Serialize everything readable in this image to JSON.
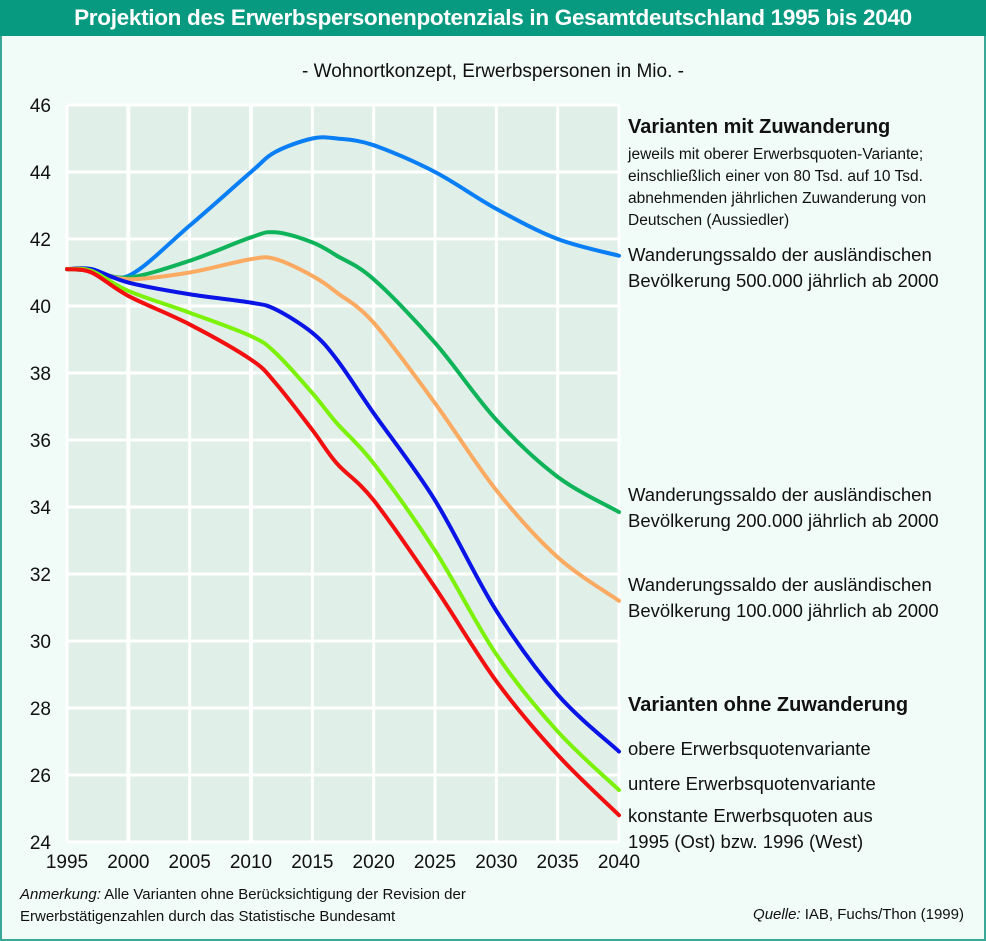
{
  "header": {
    "title": "Projektion des Erwerbspersonenpotenzials in Gesamtdeutschland 1995 bis 2040",
    "subtitle": "- Wohnortkonzept, Erwerbspersonen in Mio. -"
  },
  "legend": {
    "group_with": {
      "heading": "Varianten mit Zuwanderung",
      "desc_lines": [
        "jeweils mit oberer Erwerbsquoten-Variante;",
        "einschließlich einer von 80 Tsd. auf 10 Tsd.",
        "abnehmenden jährlichen Zuwanderung von",
        "Deutschen (Aussiedler)"
      ],
      "item_500k": [
        "Wanderungssaldo der ausländischen",
        "Bevölkerung 500.000 jährlich ab 2000"
      ],
      "item_200k": [
        "Wanderungssaldo der ausländischen",
        "Bevölkerung 200.000 jährlich ab 2000"
      ],
      "item_100k": [
        "Wanderungssaldo der ausländischen",
        "Bevölkerung 100.000 jährlich ab 2000"
      ]
    },
    "group_without": {
      "heading": "Varianten ohne Zuwanderung",
      "item_obere": "obere Erwerbsquotenvariante",
      "item_untere": "untere Erwerbsquotenvariante",
      "item_konstant": [
        "konstante Erwerbsquoten aus",
        "1995 (Ost) bzw. 1996 (West)"
      ]
    }
  },
  "footer": {
    "note_label": "Anmerkung:",
    "note_text_1": " Alle Varianten ohne Berücksichtigung der Revision der",
    "note_text_2": "Erwerbstätigenzahlen durch das Statistische Bundesamt",
    "source_label": "Quelle:",
    "source_text": " IAB, Fuchs/Thon (1999)"
  },
  "chart_data": {
    "type": "line",
    "title": "Projektion des Erwerbspersonenpotenzials in Gesamtdeutschland 1995 bis 2040",
    "subtitle": "- Wohnortkonzept, Erwerbspersonen in Mio. -",
    "xlabel": "",
    "ylabel": "Erwerbspersonen in Mio.",
    "xlim": [
      1995,
      2040
    ],
    "ylim": [
      24,
      46
    ],
    "xticks": [
      1995,
      2000,
      2005,
      2010,
      2015,
      2020,
      2025,
      2030,
      2035,
      2040
    ],
    "yticks": [
      24,
      26,
      28,
      30,
      32,
      34,
      36,
      38,
      40,
      42,
      44,
      46
    ],
    "grid": true,
    "legend_position": "right",
    "x": [
      1995,
      1997,
      2000,
      2005,
      2010,
      2012,
      2015,
      2017,
      2020,
      2025,
      2030,
      2035,
      2040
    ],
    "series": [
      {
        "name": "Wanderungssaldo der ausländischen Bevölkerung 500.000 jährlich ab 2000",
        "color": "#0a7ff5",
        "values": [
          41.1,
          41.1,
          40.9,
          42.4,
          44.0,
          44.6,
          45.0,
          45.0,
          44.8,
          44.0,
          42.9,
          42.0,
          41.5
        ]
      },
      {
        "name": "Wanderungssaldo der ausländischen Bevölkerung 200.000 jährlich ab 2000",
        "color": "#0fb35a",
        "values": [
          41.1,
          41.05,
          40.85,
          41.35,
          42.05,
          42.2,
          41.9,
          41.5,
          40.8,
          38.9,
          36.6,
          34.9,
          33.85
        ]
      },
      {
        "name": "Wanderungssaldo der ausländischen Bevölkerung 100.000 jährlich ab 2000",
        "color": "#fbaa62",
        "values": [
          41.1,
          41.05,
          40.8,
          41.0,
          41.4,
          41.4,
          40.9,
          40.4,
          39.5,
          37.1,
          34.5,
          32.5,
          31.2
        ]
      },
      {
        "name": "obere Erwerbsquotenvariante",
        "color": "#0a14e6",
        "values": [
          41.1,
          41.1,
          40.7,
          40.35,
          40.1,
          39.9,
          39.2,
          38.4,
          36.8,
          34.2,
          30.9,
          28.4,
          26.7
        ]
      },
      {
        "name": "untere Erwerbsquotenvariante",
        "color": "#7cf20a",
        "values": [
          41.1,
          41.05,
          40.45,
          39.8,
          39.1,
          38.6,
          37.4,
          36.5,
          35.3,
          32.7,
          29.6,
          27.3,
          25.55
        ]
      },
      {
        "name": "konstante Erwerbsquoten aus 1995 (Ost) bzw. 1996 (West)",
        "color": "#f20f0f",
        "values": [
          41.1,
          41.0,
          40.3,
          39.45,
          38.4,
          37.7,
          36.3,
          35.3,
          34.2,
          31.6,
          28.8,
          26.6,
          24.8
        ]
      }
    ]
  }
}
